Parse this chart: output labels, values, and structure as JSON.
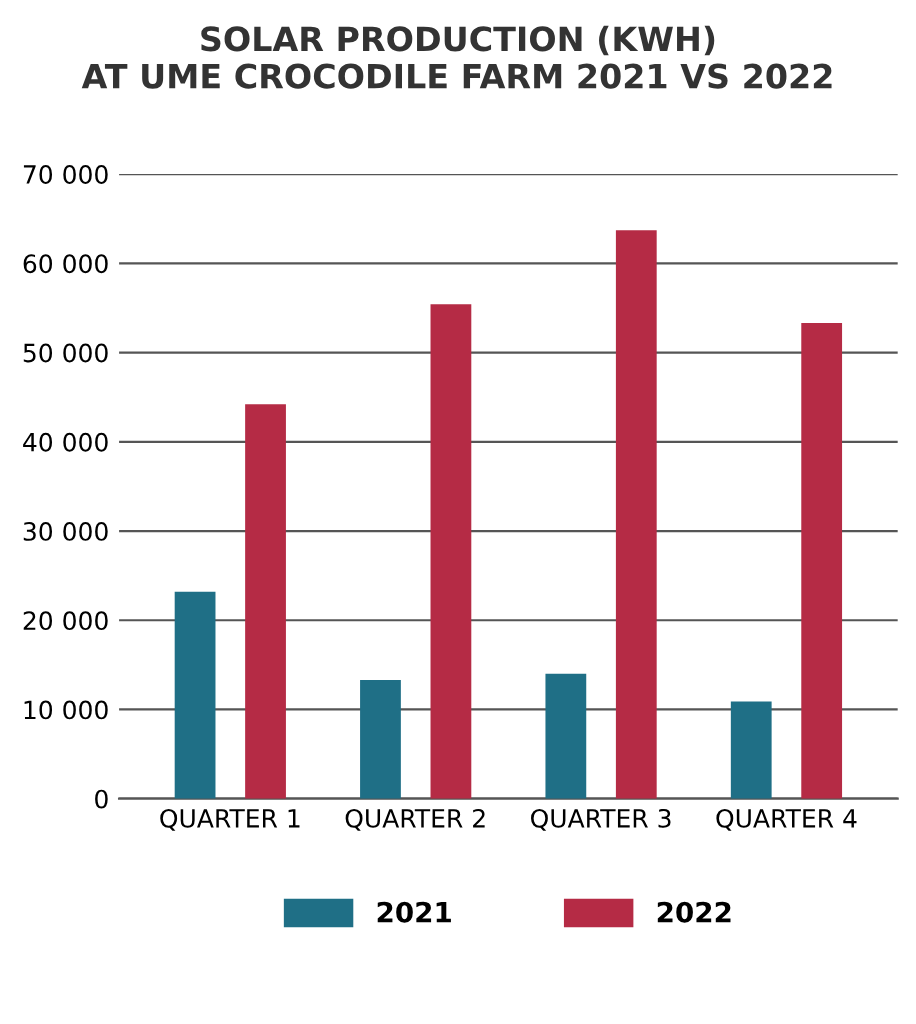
{
  "chart_data": {
    "type": "bar",
    "title": "SOLAR PRODUCTION (KWH)\nAT UME CROCODILE FARM 2021 VS 2022",
    "categories": [
      "QUARTER 1",
      "QUARTER 2",
      "QUARTER 3",
      "QUARTER 4"
    ],
    "series": [
      {
        "name": "2021",
        "color": "#1f6f86",
        "values": [
          23200,
          13300,
          14000,
          10900
        ]
      },
      {
        "name": "2022",
        "color": "#b52b45",
        "values": [
          44200,
          55400,
          63700,
          53300
        ]
      }
    ],
    "ylim": [
      0,
      70000
    ],
    "yticks": [
      {
        "value": 0,
        "label": "0"
      },
      {
        "value": 10000,
        "label": "10 000"
      },
      {
        "value": 20000,
        "label": "20 000"
      },
      {
        "value": 30000,
        "label": "30 000"
      },
      {
        "value": 40000,
        "label": "40 000"
      },
      {
        "value": 50000,
        "label": "50 000"
      },
      {
        "value": 60000,
        "label": "60 000"
      },
      {
        "value": 70000,
        "label": "70 000"
      }
    ],
    "grid": "y",
    "legend": "bottom"
  }
}
